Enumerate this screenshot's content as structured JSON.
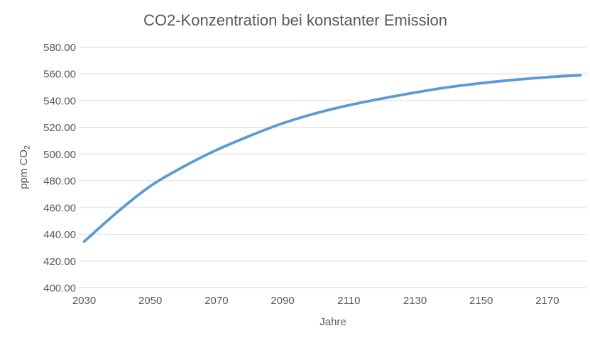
{
  "colors": {
    "line": "#5B9BD5",
    "grid": "#D9D9D9",
    "axis": "#D9D9D9",
    "text": "#595959",
    "background": "#FFFFFF"
  },
  "chart_data": {
    "type": "line",
    "title": "CO2-Konzentration bei konstanter Emission",
    "xlabel": "Jahre",
    "ylabel": "ppm CO₂",
    "ylabel_parts": {
      "main": "ppm CO",
      "sub": "2"
    },
    "x": [
      2030,
      2040,
      2050,
      2060,
      2070,
      2080,
      2090,
      2100,
      2110,
      2120,
      2130,
      2140,
      2150,
      2160,
      2170,
      2180
    ],
    "y": [
      434.5,
      456.5,
      476.0,
      490.5,
      503.0,
      513.5,
      523.0,
      530.5,
      536.5,
      541.5,
      546.0,
      550.0,
      553.0,
      555.5,
      557.5,
      559.0
    ],
    "x_ticks": {
      "values": [
        2030,
        2050,
        2070,
        2090,
        2110,
        2130,
        2150,
        2170
      ],
      "labels": [
        "2030",
        "2050",
        "2070",
        "2090",
        "2110",
        "2130",
        "2150",
        "2170"
      ]
    },
    "y_ticks": {
      "values": [
        400,
        420,
        440,
        460,
        480,
        500,
        520,
        540,
        560,
        580
      ],
      "labels": [
        "400.00",
        "420.00",
        "440.00",
        "460.00",
        "480.00",
        "500.00",
        "520.00",
        "540.00",
        "560.00",
        "580.00"
      ]
    },
    "xlim": [
      2030,
      2180
    ],
    "ylim": [
      400,
      580
    ],
    "grid": "horizontal",
    "legend": "none"
  }
}
